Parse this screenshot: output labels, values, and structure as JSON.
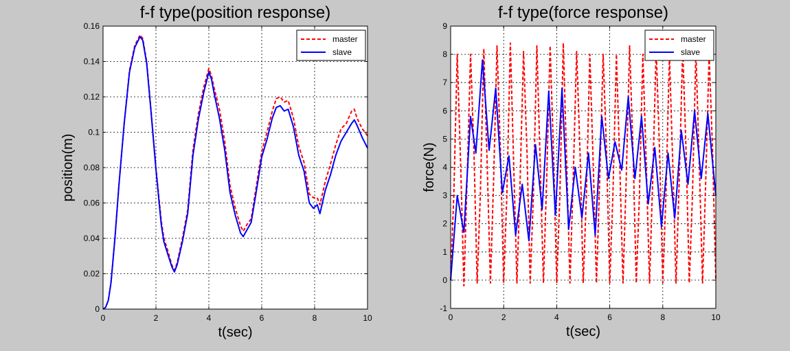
{
  "figure": {
    "background": "#c8c8c8"
  },
  "chart_data": [
    {
      "type": "line",
      "title": "f-f type(position response)",
      "xlabel": "t(sec)",
      "ylabel": "position(m)",
      "xlim": [
        0,
        10
      ],
      "ylim": [
        0,
        0.16
      ],
      "xticks": [
        0,
        2,
        4,
        6,
        8,
        10
      ],
      "xtick_labels": [
        "0",
        "2",
        "4",
        "6",
        "8",
        "10"
      ],
      "yticks": [
        0,
        0.02,
        0.04,
        0.06,
        0.08,
        0.1,
        0.12,
        0.14,
        0.16
      ],
      "ytick_labels": [
        "0",
        "0.02",
        "0.04",
        "0.06",
        "0.08",
        "0.1",
        "0.12",
        "0.14",
        "0.16"
      ],
      "grid": true,
      "legend": "top-right",
      "series": [
        {
          "name": "master",
          "color": "#ff0000",
          "style": "dashed",
          "x": [
            0,
            0.1,
            0.2,
            0.3,
            0.45,
            0.6,
            0.8,
            1.0,
            1.2,
            1.4,
            1.5,
            1.65,
            1.8,
            2.0,
            2.2,
            2.3,
            2.45,
            2.6,
            2.7,
            2.8,
            3.0,
            3.2,
            3.4,
            3.6,
            3.8,
            4.0,
            4.1,
            4.2,
            4.4,
            4.6,
            4.8,
            5.0,
            5.2,
            5.3,
            5.45,
            5.6,
            5.8,
            6.0,
            6.2,
            6.4,
            6.55,
            6.7,
            6.85,
            7.0,
            7.2,
            7.4,
            7.6,
            7.8,
            7.95,
            8.1,
            8.2,
            8.4,
            8.6,
            8.8,
            9.0,
            9.2,
            9.4,
            9.5,
            9.6,
            9.8,
            10.0
          ],
          "y": [
            0.0,
            0.001,
            0.005,
            0.015,
            0.04,
            0.07,
            0.105,
            0.135,
            0.149,
            0.155,
            0.153,
            0.14,
            0.115,
            0.08,
            0.05,
            0.04,
            0.033,
            0.025,
            0.022,
            0.026,
            0.04,
            0.056,
            0.09,
            0.11,
            0.125,
            0.136,
            0.132,
            0.125,
            0.113,
            0.095,
            0.07,
            0.057,
            0.047,
            0.044,
            0.048,
            0.051,
            0.07,
            0.089,
            0.1,
            0.112,
            0.119,
            0.12,
            0.117,
            0.118,
            0.108,
            0.092,
            0.083,
            0.065,
            0.063,
            0.063,
            0.059,
            0.072,
            0.082,
            0.093,
            0.102,
            0.105,
            0.112,
            0.113,
            0.108,
            0.102,
            0.098
          ]
        },
        {
          "name": "slave",
          "color": "#0000ff",
          "style": "solid",
          "x": [
            0,
            0.1,
            0.2,
            0.3,
            0.45,
            0.6,
            0.8,
            1.0,
            1.2,
            1.4,
            1.5,
            1.65,
            1.8,
            2.0,
            2.2,
            2.3,
            2.45,
            2.6,
            2.7,
            2.8,
            3.0,
            3.2,
            3.4,
            3.6,
            3.8,
            4.0,
            4.1,
            4.2,
            4.4,
            4.6,
            4.8,
            5.0,
            5.2,
            5.3,
            5.45,
            5.6,
            5.8,
            6.0,
            6.2,
            6.4,
            6.55,
            6.7,
            6.85,
            7.0,
            7.2,
            7.4,
            7.6,
            7.8,
            7.95,
            8.1,
            8.2,
            8.4,
            8.6,
            8.8,
            9.0,
            9.2,
            9.4,
            9.5,
            9.6,
            9.8,
            10.0
          ],
          "y": [
            0.0,
            0.001,
            0.005,
            0.015,
            0.04,
            0.07,
            0.105,
            0.134,
            0.148,
            0.154,
            0.152,
            0.139,
            0.114,
            0.079,
            0.048,
            0.038,
            0.031,
            0.024,
            0.021,
            0.025,
            0.038,
            0.054,
            0.087,
            0.107,
            0.122,
            0.134,
            0.13,
            0.122,
            0.108,
            0.09,
            0.066,
            0.053,
            0.043,
            0.041,
            0.045,
            0.049,
            0.067,
            0.086,
            0.096,
            0.108,
            0.114,
            0.115,
            0.112,
            0.113,
            0.103,
            0.087,
            0.078,
            0.06,
            0.057,
            0.059,
            0.054,
            0.067,
            0.076,
            0.087,
            0.095,
            0.1,
            0.105,
            0.107,
            0.104,
            0.097,
            0.091
          ]
        }
      ]
    },
    {
      "type": "line",
      "title": "f-f type(force response)",
      "xlabel": "t(sec)",
      "ylabel": "force(N)",
      "xlim": [
        0,
        10
      ],
      "ylim": [
        -1,
        9
      ],
      "xticks": [
        0,
        2,
        4,
        6,
        8,
        10
      ],
      "xtick_labels": [
        "0",
        "2",
        "4",
        "6",
        "8",
        "10"
      ],
      "yticks": [
        -1,
        0,
        1,
        2,
        3,
        4,
        5,
        6,
        7,
        8,
        9
      ],
      "ytick_labels": [
        "-1",
        "0",
        "1",
        "2",
        "3",
        "4",
        "5",
        "6",
        "7",
        "8",
        "9"
      ],
      "grid": true,
      "legend": "top-right",
      "series": [
        {
          "name": "master",
          "color": "#ff0000",
          "style": "dashed",
          "x": [
            0.0,
            0.12,
            0.25,
            0.38,
            0.5,
            0.62,
            0.75,
            0.88,
            1.0,
            1.12,
            1.25,
            1.38,
            1.5,
            1.62,
            1.75,
            1.88,
            2.0,
            2.12,
            2.25,
            2.38,
            2.5,
            2.62,
            2.75,
            2.88,
            3.0,
            3.12,
            3.25,
            3.38,
            3.5,
            3.62,
            3.75,
            3.88,
            4.0,
            4.12,
            4.25,
            4.38,
            4.5,
            4.62,
            4.75,
            4.88,
            5.0,
            5.12,
            5.25,
            5.38,
            5.5,
            5.62,
            5.75,
            5.88,
            6.0,
            6.12,
            6.25,
            6.38,
            6.5,
            6.62,
            6.75,
            6.88,
            7.0,
            7.12,
            7.25,
            7.38,
            7.5,
            7.62,
            7.75,
            7.88,
            8.0,
            8.12,
            8.25,
            8.38,
            8.5,
            8.62,
            8.75,
            8.88,
            9.0,
            9.12,
            9.25,
            9.38,
            9.5,
            9.62,
            9.75,
            9.88,
            10.0
          ],
          "y": [
            0.0,
            3.0,
            8.0,
            4.0,
            -0.2,
            3.5,
            8.0,
            4.5,
            -0.1,
            3.0,
            8.2,
            4.0,
            -0.1,
            3.5,
            8.3,
            4.5,
            -0.1,
            3.0,
            8.4,
            4.0,
            -0.1,
            3.5,
            8.1,
            4.5,
            -0.1,
            3.0,
            8.3,
            4.0,
            -0.1,
            3.5,
            8.3,
            4.5,
            -0.1,
            3.0,
            8.4,
            4.0,
            -0.1,
            3.5,
            8.1,
            4.5,
            -0.1,
            3.0,
            8.0,
            4.0,
            -0.1,
            3.5,
            8.0,
            4.5,
            -0.1,
            3.0,
            8.0,
            4.0,
            -0.1,
            3.5,
            8.3,
            4.5,
            -0.1,
            3.0,
            8.0,
            4.0,
            -0.1,
            3.5,
            8.2,
            4.5,
            -0.1,
            3.0,
            8.0,
            4.0,
            -0.1,
            3.5,
            8.2,
            4.5,
            -0.1,
            3.0,
            8.1,
            4.0,
            -0.1,
            3.5,
            8.0,
            4.5,
            0.0
          ]
        },
        {
          "name": "slave",
          "color": "#0000ff",
          "style": "solid",
          "x": [
            0.0,
            0.25,
            0.5,
            0.75,
            0.95,
            1.2,
            1.45,
            1.7,
            1.95,
            2.2,
            2.45,
            2.7,
            2.95,
            3.2,
            3.45,
            3.7,
            3.95,
            4.2,
            4.45,
            4.7,
            4.95,
            5.2,
            5.45,
            5.7,
            5.95,
            6.2,
            6.45,
            6.7,
            6.95,
            7.2,
            7.45,
            7.7,
            7.95,
            8.2,
            8.45,
            8.7,
            8.95,
            9.2,
            9.45,
            9.7,
            10.0
          ],
          "y": [
            0.0,
            3.0,
            1.7,
            5.8,
            4.5,
            7.8,
            4.6,
            6.8,
            3.1,
            4.4,
            1.6,
            3.4,
            1.4,
            4.8,
            2.5,
            6.7,
            2.3,
            6.8,
            1.8,
            4.0,
            2.2,
            4.5,
            1.6,
            5.8,
            3.6,
            4.9,
            3.9,
            6.5,
            3.6,
            5.8,
            2.7,
            4.7,
            1.9,
            4.5,
            2.2,
            5.3,
            3.4,
            6.0,
            3.6,
            5.9,
            3.0
          ]
        }
      ]
    }
  ]
}
